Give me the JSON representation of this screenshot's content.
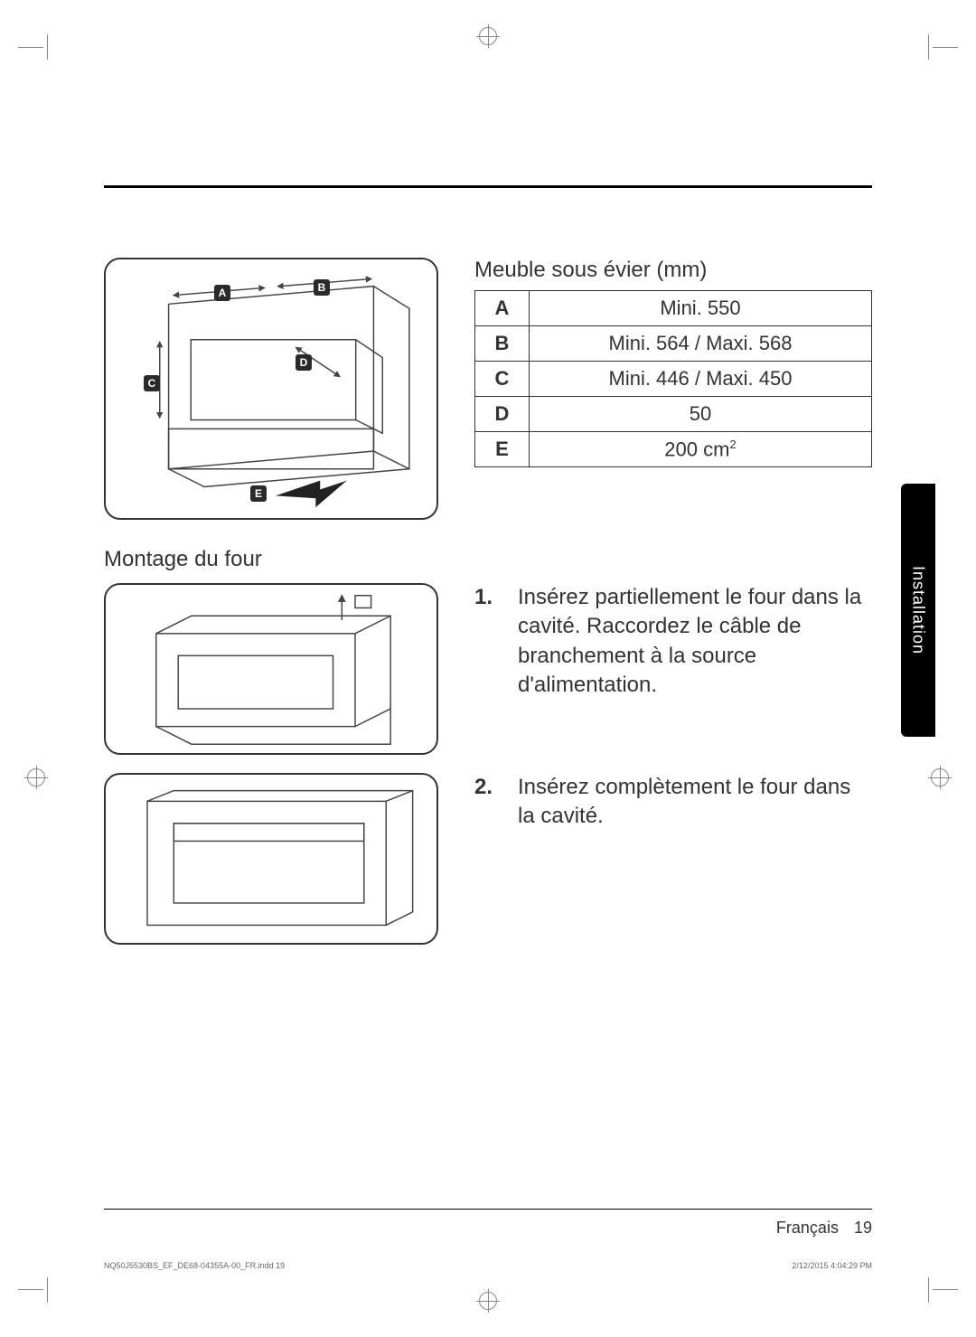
{
  "table": {
    "title": "Meuble sous évier (mm)",
    "rows": [
      {
        "key": "A",
        "val": "Mini. 550"
      },
      {
        "key": "B",
        "val": "Mini. 564 / Maxi. 568"
      },
      {
        "key": "C",
        "val": "Mini. 446 / Maxi. 450"
      },
      {
        "key": "D",
        "val": "50"
      },
      {
        "key": "E",
        "val": "200 cm²"
      }
    ]
  },
  "section_title": "Montage du four",
  "steps": [
    {
      "num": "1.",
      "text": "Insérez partiellement le four dans la cavité. Raccordez le câble de branchement à la source d'alimentation."
    },
    {
      "num": "2.",
      "text": "Insérez complètement le four dans la cavité."
    }
  ],
  "side_tab": "Installation",
  "footer": {
    "lang": "Français",
    "page": "19"
  },
  "print": {
    "file": "NQ50J5530BS_EF_DE68-04355A-00_FR.indd   19",
    "stamp": "2/12/2015   4:04:29 PM"
  },
  "labels": {
    "A": "A",
    "B": "B",
    "C": "C",
    "D": "D",
    "E": "E"
  },
  "colors": {
    "rule": "#000000",
    "border": "#333333",
    "tab_bg": "#000000",
    "tab_fg": "#ffffff",
    "line": "#444444"
  }
}
